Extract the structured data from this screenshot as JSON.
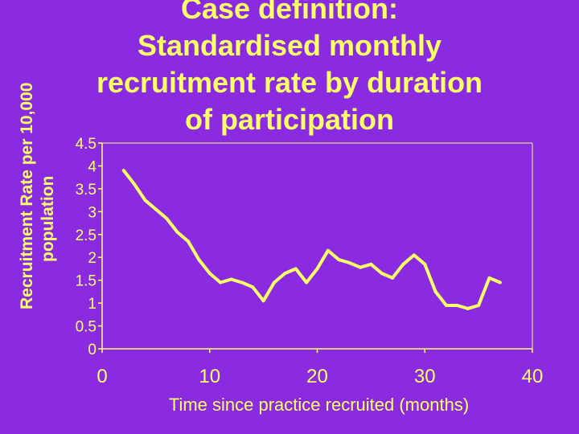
{
  "slide": {
    "title_lines": [
      "Case definition:",
      "Standardised monthly",
      "recruitment rate by duration",
      "of participation"
    ]
  },
  "colors": {
    "background": "#8a2be2",
    "text": "#ffff66",
    "line": "#ffff66",
    "axes": "#ffff66"
  },
  "chart_data": {
    "type": "line",
    "title": "",
    "xlabel": "Time since practice recruited (months)",
    "ylabel_lines": [
      "Recruitment Rate per 10,000",
      "population"
    ],
    "xlim": [
      0,
      40
    ],
    "ylim": [
      0,
      4.5
    ],
    "x_ticks": [
      0,
      10,
      20,
      30,
      40
    ],
    "y_ticks": [
      0,
      0.5,
      1,
      1.5,
      2,
      2.5,
      3,
      3.5,
      4,
      4.5
    ],
    "y_tick_labels": [
      "0",
      "0.5",
      "1",
      "1.5",
      "2",
      "2.5",
      "3",
      "3.5",
      "4",
      "4.5"
    ],
    "grid": false,
    "legend": "none",
    "series": [
      {
        "x": [
          2,
          3,
          4,
          5,
          6,
          7,
          8,
          9,
          10,
          11,
          12,
          13,
          14,
          15,
          16,
          17,
          18,
          19,
          20,
          21,
          22,
          23,
          24,
          25,
          26,
          27,
          28,
          29,
          30,
          31,
          32,
          33,
          34,
          35,
          36,
          37
        ],
        "values": [
          3.9,
          3.6,
          3.25,
          3.05,
          2.85,
          2.55,
          2.35,
          1.95,
          1.65,
          1.45,
          1.52,
          1.45,
          1.35,
          1.05,
          1.45,
          1.65,
          1.75,
          1.45,
          1.75,
          2.15,
          1.95,
          1.88,
          1.78,
          1.85,
          1.65,
          1.55,
          1.85,
          2.05,
          1.85,
          1.25,
          0.95,
          0.95,
          0.88,
          0.95,
          1.55,
          1.45
        ]
      }
    ]
  }
}
